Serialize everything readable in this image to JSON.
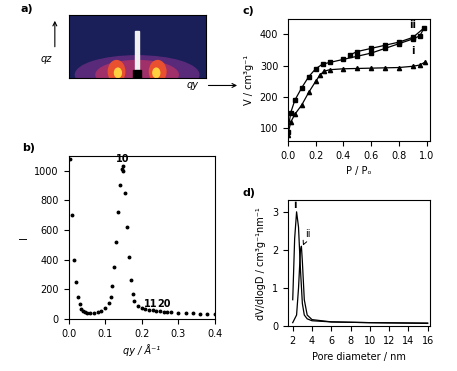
{
  "chart_data": [
    {
      "type": "image",
      "panel_label": "a)",
      "x_label": "qy",
      "y_label": "qz",
      "tick_labels": false
    },
    {
      "type": "scatter",
      "panel_label": "b)",
      "x_label": "qy / Å⁻¹",
      "y_label": "I",
      "xlim": [
        0,
        0.4
      ],
      "xticks": [
        {
          "value": 0,
          "label": "0.0"
        },
        {
          "value": 0.1,
          "label": "0.1"
        },
        {
          "value": 0.2,
          "label": "0.2"
        },
        {
          "value": 0.3,
          "label": "0.3"
        },
        {
          "value": 0.4,
          "label": "0.4"
        }
      ],
      "ylim": [
        0,
        1100
      ],
      "yticks": [
        0,
        200,
        400,
        600,
        800,
        1000
      ],
      "series": [
        {
          "color": "#000000",
          "marker": "circle",
          "line_style": "none",
          "x": [
            0.005,
            0.01,
            0.015,
            0.02,
            0.025,
            0.03,
            0.035,
            0.04,
            0.045,
            0.05,
            0.06,
            0.07,
            0.08,
            0.09,
            0.1,
            0.11,
            0.115,
            0.12,
            0.125,
            0.13,
            0.135,
            0.14,
            0.145,
            0.148,
            0.15,
            0.155,
            0.16,
            0.165,
            0.17,
            0.175,
            0.18,
            0.19,
            0.2,
            0.21,
            0.22,
            0.23,
            0.24,
            0.25,
            0.26,
            0.27,
            0.28,
            0.3,
            0.32,
            0.34,
            0.36,
            0.38,
            0.4
          ],
          "values": [
            1080,
            700,
            400,
            250,
            150,
            100,
            70,
            55,
            45,
            40,
            38,
            40,
            45,
            55,
            75,
            110,
            150,
            220,
            350,
            520,
            720,
            900,
            1010,
            1030,
            1000,
            850,
            620,
            420,
            260,
            170,
            120,
            90,
            75,
            68,
            62,
            58,
            55,
            52,
            50,
            47,
            45,
            42,
            40,
            38,
            37,
            36,
            35
          ]
        }
      ],
      "annotations": [
        {
          "text": "10",
          "x": 0.148,
          "y": 1045
        },
        {
          "text": "11",
          "x": 0.225,
          "y": 65
        },
        {
          "text": "20",
          "x": 0.262,
          "y": 65
        }
      ]
    },
    {
      "type": "line",
      "panel_label": "c)",
      "x_label": "P / Pₒ",
      "y_label": "V / cm³g⁻¹",
      "xlim": [
        0,
        1.02
      ],
      "xticks": [
        {
          "value": 0,
          "label": "0.0"
        },
        {
          "value": 0.2,
          "label": "0.2"
        },
        {
          "value": 0.4,
          "label": "0.4"
        },
        {
          "value": 0.6,
          "label": "0.6"
        },
        {
          "value": 0.8,
          "label": "0.8"
        },
        {
          "value": 1.0,
          "label": "1.0"
        }
      ],
      "ylim": [
        60,
        450
      ],
      "yticks": [
        100,
        200,
        300,
        400
      ],
      "series": [
        {
          "color": "#000000",
          "marker": "triangle",
          "line_style": "solid",
          "x": [
            0.0,
            0.02,
            0.05,
            0.1,
            0.15,
            0.2,
            0.23,
            0.26,
            0.3,
            0.4,
            0.5,
            0.6,
            0.7,
            0.8,
            0.9,
            0.95,
            0.99
          ],
          "values": [
            80,
            120,
            145,
            175,
            215,
            250,
            270,
            282,
            287,
            290,
            291,
            292,
            293,
            294,
            298,
            302,
            312
          ]
        },
        {
          "color": "#000000",
          "marker": "square",
          "line_style": "solid",
          "x": [
            0.0,
            0.02,
            0.05,
            0.1,
            0.15,
            0.2,
            0.25,
            0.3,
            0.4,
            0.5,
            0.6,
            0.7,
            0.8,
            0.9,
            0.95,
            0.98,
            0.9,
            0.8,
            0.7,
            0.6,
            0.5,
            0.45
          ],
          "values": [
            90,
            150,
            190,
            230,
            265,
            290,
            305,
            310,
            320,
            330,
            340,
            355,
            370,
            385,
            395,
            420,
            390,
            375,
            365,
            355,
            345,
            335
          ]
        }
      ],
      "annotations": [
        {
          "text": "i",
          "x": 0.9,
          "y": 330
        },
        {
          "text": "ii",
          "x": 0.9,
          "y": 415
        }
      ]
    },
    {
      "type": "line",
      "panel_label": "d)",
      "x_label": "Pore diameter / nm",
      "y_label": "dV/dlogD / cm³g⁻¹nm⁻¹",
      "xlim": [
        1.5,
        16.2
      ],
      "xticks": [
        2,
        4,
        6,
        8,
        10,
        12,
        14,
        16
      ],
      "ylim": [
        0,
        3.3
      ],
      "yticks": [
        0,
        1,
        2,
        3
      ],
      "series": [
        {
          "color": "#000000",
          "marker": "none",
          "line_style": "solid",
          "x": [
            2.0,
            2.2,
            2.4,
            2.6,
            2.8,
            3.0,
            3.2,
            3.5,
            4,
            6,
            10,
            16
          ],
          "values": [
            0.7,
            2.3,
            3.0,
            2.6,
            1.5,
            0.6,
            0.3,
            0.2,
            0.15,
            0.12,
            0.1,
            0.08
          ]
        },
        {
          "color": "#000000",
          "marker": "none",
          "line_style": "solid",
          "x": [
            2.0,
            2.4,
            2.6,
            2.8,
            2.9,
            3.0,
            3.2,
            3.5,
            4,
            6,
            10,
            16
          ],
          "values": [
            0.1,
            0.3,
            1.0,
            2.0,
            2.1,
            1.7,
            0.7,
            0.3,
            0.18,
            0.12,
            0.1,
            0.09
          ]
        }
      ],
      "annotations": [
        {
          "text": "i",
          "x": 2.25,
          "y": 3.05
        },
        {
          "text": "ii",
          "x": 3.6,
          "y": 2.3,
          "arrow_to": [
            2.95,
            2.05
          ]
        }
      ]
    }
  ]
}
